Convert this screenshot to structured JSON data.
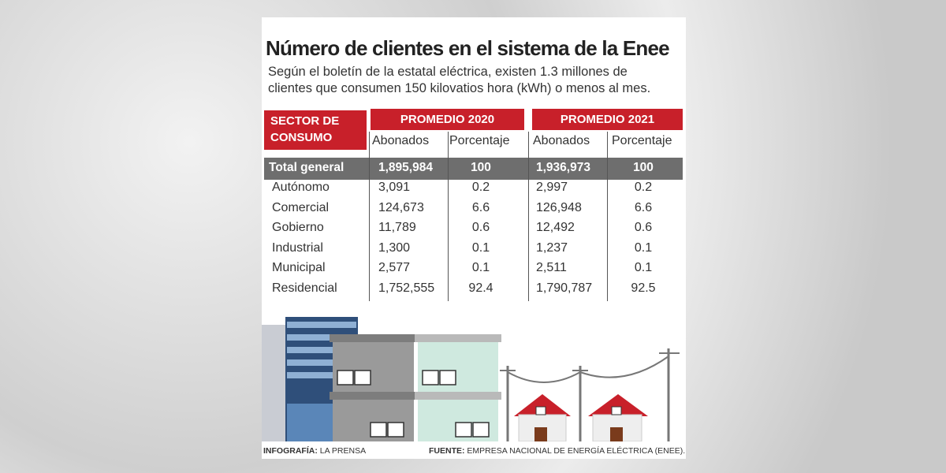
{
  "title": "Número de clientes en el sistema de la Enee",
  "subtitle_lines": [
    "Según el boletín de la estatal eléctrica, existen 1.3 millones de",
    "clientes que consumen 150 kilovatios hora (kWh) o menos al mes."
  ],
  "table": {
    "sector_header": "SECTOR DE CONSUMO",
    "groups": [
      "PROMEDIO  2020",
      "PROMEDIO 2021"
    ],
    "subheaders": [
      "Abonados",
      "Porcentaje",
      "Abonados",
      "Porcentaje"
    ],
    "rows": [
      [
        "Total general",
        "1,895,984",
        "100",
        "1,936,973",
        "100"
      ],
      [
        "Autónomo",
        "3,091",
        "0.2",
        "2,997",
        "0.2"
      ],
      [
        "Comercial",
        "124,673",
        "6.6",
        "126,948",
        "6.6"
      ],
      [
        "Gobierno",
        "11,789",
        "0.6",
        "12,492",
        "0.6"
      ],
      [
        "Industrial",
        "1,300",
        "0.1",
        "1,237",
        "0.1"
      ],
      [
        "Municipal",
        "2,577",
        "0.1",
        "2,511",
        "0.1"
      ],
      [
        "Residencial",
        "1,752,555",
        "92.4",
        "1,790,787",
        "92.5"
      ]
    ]
  },
  "footer": {
    "credit_label": "INFOGRAFÍA:",
    "credit": "LA PRENSA",
    "source_label": "FUENTE:",
    "source": "EMPRESA NACIONAL DE ENERGÍA ELÉCTRICA (ENEE)."
  }
}
